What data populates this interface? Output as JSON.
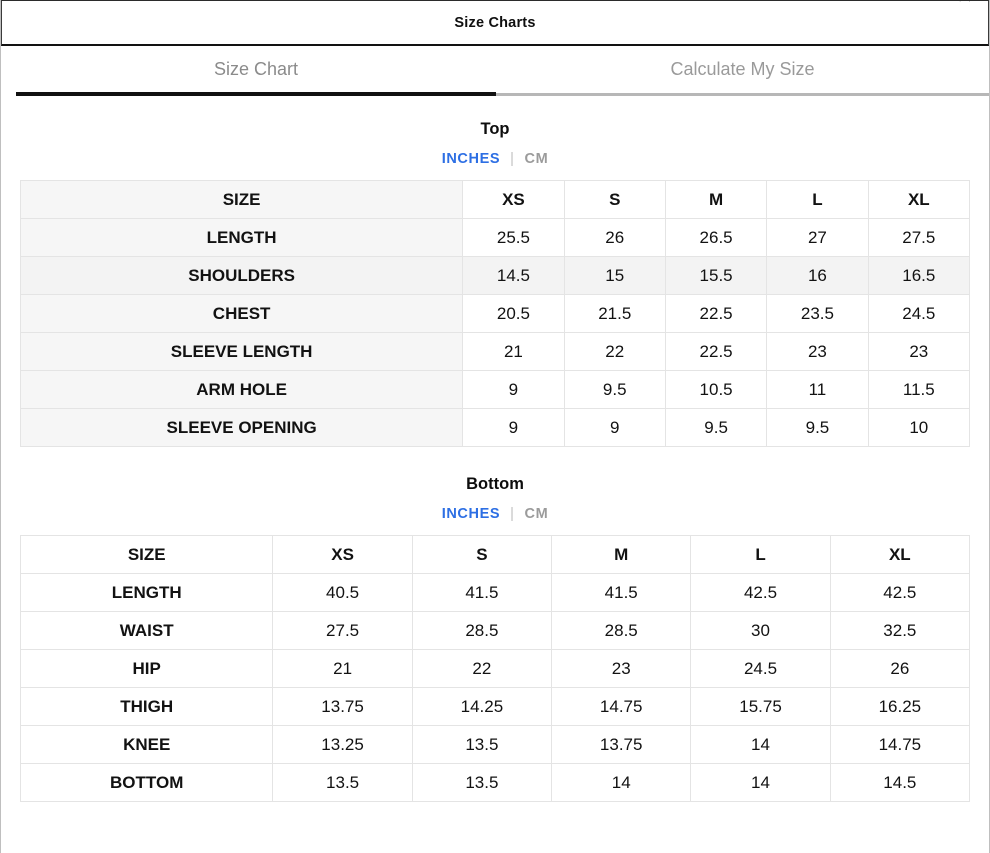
{
  "modal": {
    "title": "Size Charts",
    "close_icon": "✕"
  },
  "tabs": [
    {
      "label": "Size Chart",
      "active": true
    },
    {
      "label": "Calculate My Size",
      "active": false
    }
  ],
  "units": {
    "inches": "INCHES",
    "separator": "|",
    "cm": "CM",
    "selected": "INCHES"
  },
  "colors": {
    "accent_blue": "#2D6FE4",
    "active_tab_underline": "#111111",
    "inactive_tab_underline": "#B7B7B7",
    "label_column_bg": "#F6F6F6",
    "highlight_row_bg": "#F3F3F3"
  },
  "tables": [
    {
      "name": "Top",
      "columns": [
        "SIZE",
        "XS",
        "S",
        "M",
        "L",
        "XL"
      ],
      "rows": [
        {
          "label": "LENGTH",
          "values": [
            "25.5",
            "26",
            "26.5",
            "27",
            "27.5"
          ]
        },
        {
          "label": "SHOULDERS",
          "values": [
            "14.5",
            "15",
            "15.5",
            "16",
            "16.5"
          ],
          "highlight": true
        },
        {
          "label": "CHEST",
          "values": [
            "20.5",
            "21.5",
            "22.5",
            "23.5",
            "24.5"
          ]
        },
        {
          "label": "SLEEVE LENGTH",
          "values": [
            "21",
            "22",
            "22.5",
            "23",
            "23"
          ]
        },
        {
          "label": "ARM HOLE",
          "values": [
            "9",
            "9.5",
            "10.5",
            "11",
            "11.5"
          ]
        },
        {
          "label": "SLEEVE OPENING",
          "values": [
            "9",
            "9",
            "9.5",
            "9.5",
            "10"
          ]
        }
      ]
    },
    {
      "name": "Bottom",
      "columns": [
        "SIZE",
        "XS",
        "S",
        "M",
        "L",
        "XL"
      ],
      "rows": [
        {
          "label": "LENGTH",
          "values": [
            "40.5",
            "41.5",
            "41.5",
            "42.5",
            "42.5"
          ]
        },
        {
          "label": "WAIST",
          "values": [
            "27.5",
            "28.5",
            "28.5",
            "30",
            "32.5"
          ]
        },
        {
          "label": "HIP",
          "values": [
            "21",
            "22",
            "23",
            "24.5",
            "26"
          ]
        },
        {
          "label": "THIGH",
          "values": [
            "13.75",
            "14.25",
            "14.75",
            "15.75",
            "16.25"
          ]
        },
        {
          "label": "KNEE",
          "values": [
            "13.25",
            "13.5",
            "13.75",
            "14",
            "14.75"
          ]
        },
        {
          "label": "BOTTOM",
          "values": [
            "13.5",
            "13.5",
            "14",
            "14",
            "14.5"
          ]
        }
      ]
    }
  ]
}
